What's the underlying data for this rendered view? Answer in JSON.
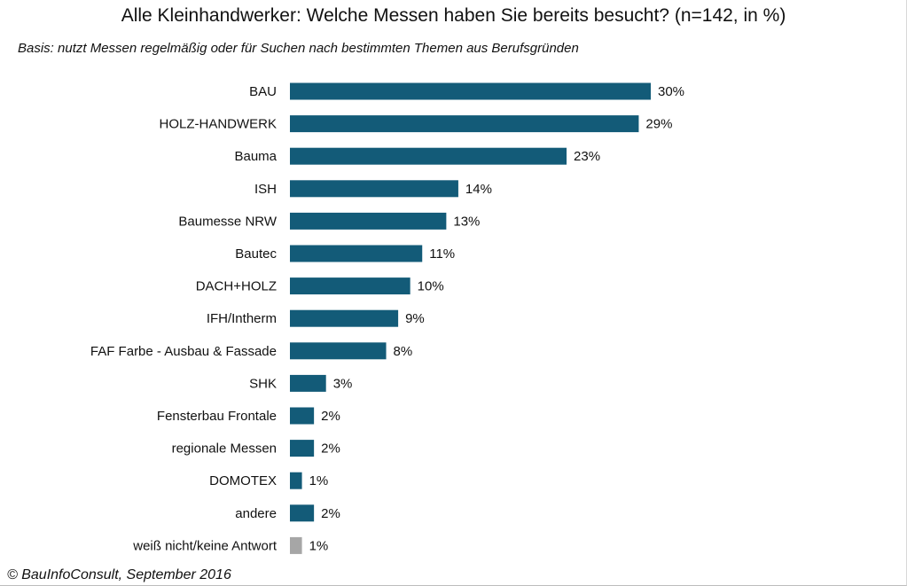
{
  "title": "Alle Kleinhandwerker: Welche Messen haben Sie bereits besucht? (n=142, in %)",
  "subtitle": "Basis: nutzt Messen regelmäßig oder für Suchen nach bestimmten Themen aus Berufsgründen",
  "footer": "© BauInfoConsult, September 2016",
  "colors": {
    "bar": "#135b78",
    "bar_other": "#a6a6a6"
  },
  "chart_data": {
    "type": "bar",
    "orientation": "horizontal",
    "categories": [
      "BAU",
      "HOLZ-HANDWERK",
      "Bauma",
      "ISH",
      "Baumesse NRW",
      "Bautec",
      "DACH+HOLZ",
      "IFH/Intherm",
      "FAF Farbe - Ausbau & Fassade",
      "SHK",
      "Fensterbau Frontale ",
      "regionale Messen",
      "DOMOTEX",
      "andere",
      "weiß nicht/keine Antwort"
    ],
    "values": [
      30,
      29,
      23,
      14,
      13,
      11,
      10,
      9,
      8,
      3,
      2,
      2,
      1,
      2,
      1
    ],
    "data_labels": [
      "30%",
      "29%",
      "23%",
      "14%",
      "13%",
      "11%",
      "10%",
      "9%",
      "8%",
      "3%",
      "2%",
      "2%",
      "1%",
      "2%",
      "1%"
    ],
    "highlight_last_gray": true,
    "unit": "%",
    "xlim": [
      0,
      30
    ],
    "grid": false,
    "legend": "none",
    "title": "Alle Kleinhandwerker: Welche Messen haben Sie bereits besucht? (n=142, in %)"
  }
}
